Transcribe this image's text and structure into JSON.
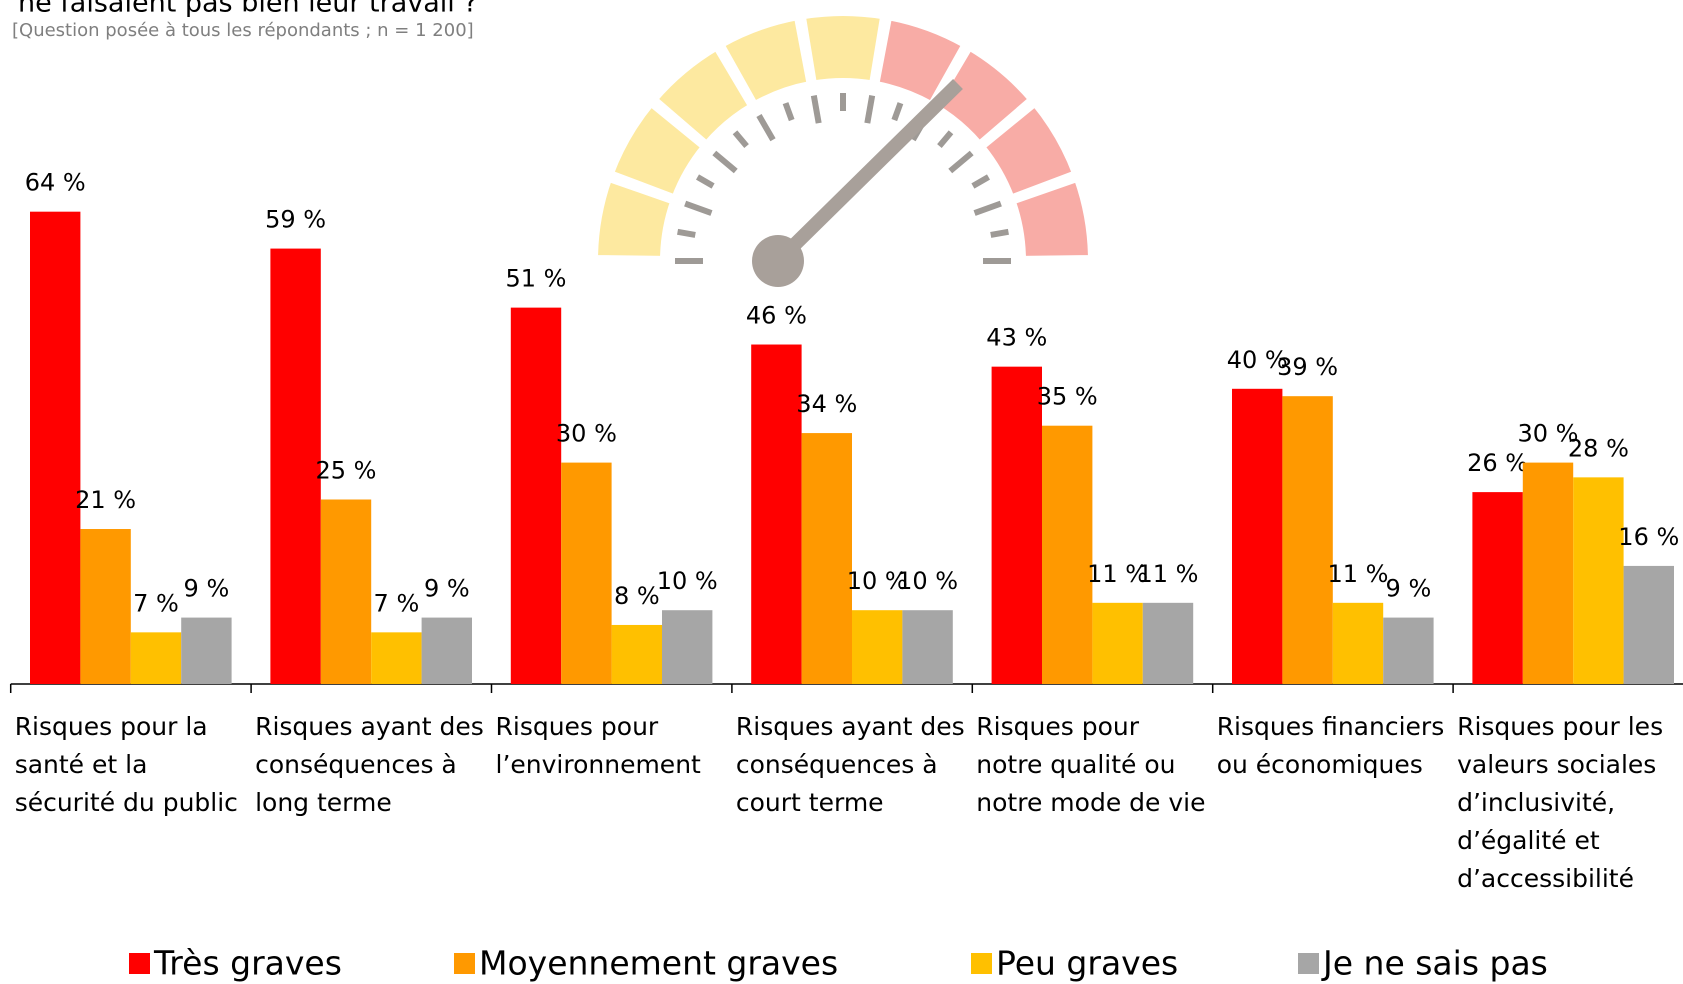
{
  "chart_data": {
    "type": "bar",
    "title": "ne faisaient pas bien leur travail ?",
    "subtitle": "[Question posée à tous les répondants ; n = 1 200]",
    "categories": [
      "Risques pour la santé et la sécurité du public",
      "Risques ayant des conséquences à long terme",
      "Risques pour l’environnement",
      "Risques ayant des conséquences à court terme",
      "Risques pour notre qualité ou notre mode de vie",
      "Risques financiers ou économiques",
      "Risques pour les valeurs sociales d’inclusivité, d’égalité et d’accessibilité"
    ],
    "series": [
      {
        "name": "Très graves",
        "color": "#ff0000",
        "values": [
          64,
          59,
          51,
          46,
          43,
          40,
          26
        ],
        "value_labels": [
          "64 %",
          "59 %",
          "51 %",
          "46 %",
          "43 %",
          "40 %",
          "26 %"
        ]
      },
      {
        "name": "Moyennement graves",
        "color": "#ff9900",
        "values": [
          21,
          25,
          30,
          34,
          35,
          39,
          30
        ],
        "value_labels": [
          "21 %",
          "25 %",
          "30 %",
          "34 %",
          "35 %",
          "39 %",
          "30 %"
        ]
      },
      {
        "name": "Peu graves",
        "color": "#ffc000",
        "values": [
          7,
          7,
          8,
          10,
          11,
          11,
          28
        ],
        "value_labels": [
          "7 %",
          "7 %",
          "8 %",
          "10 %",
          "11 %",
          "11 %",
          "28 %"
        ]
      },
      {
        "name": "Je ne sais pas",
        "color": "#a6a6a6",
        "values": [
          9,
          9,
          10,
          10,
          11,
          9,
          16
        ],
        "value_labels": [
          "9 %",
          "9 %",
          "10 %",
          "10 %",
          "11 %",
          "9 %",
          "16 %"
        ]
      }
    ],
    "legend": "bottom"
  }
}
